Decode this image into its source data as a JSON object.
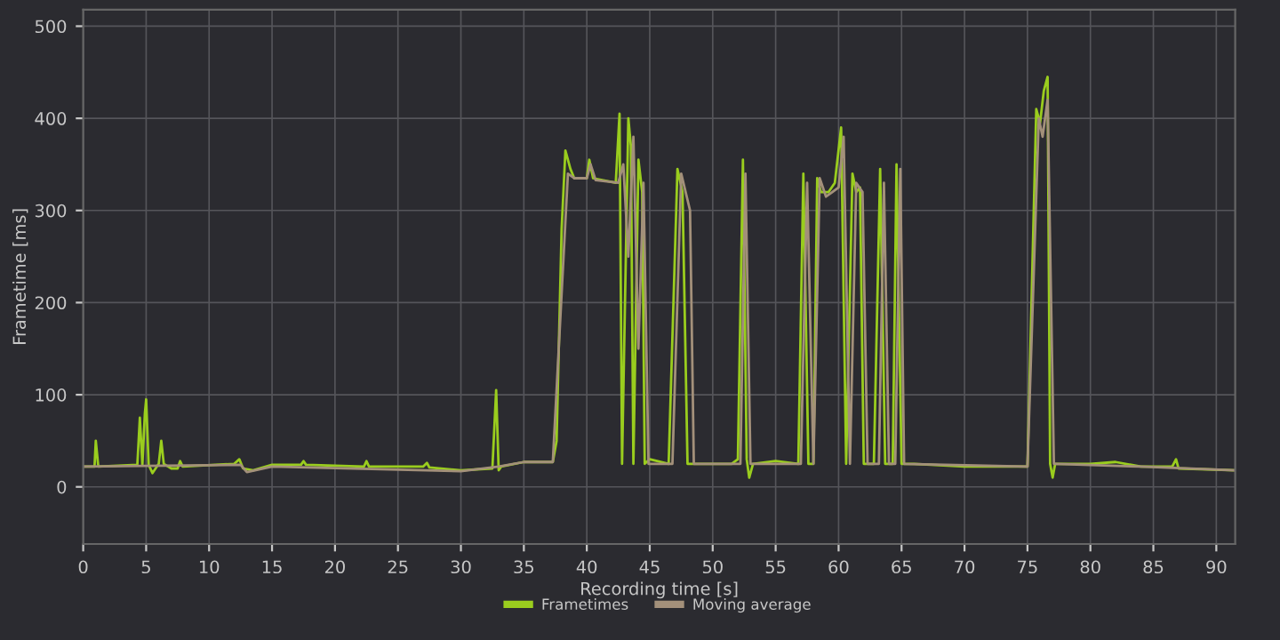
{
  "chart_data": {
    "type": "line",
    "xlabel": "Recording time [s]",
    "ylabel": "Frametime [ms]",
    "xlim": [
      0,
      91.5
    ],
    "ylim": [
      -62,
      518
    ],
    "xticks": [
      0,
      5,
      10,
      15,
      20,
      25,
      30,
      35,
      40,
      45,
      50,
      55,
      60,
      65,
      70,
      75,
      80,
      85,
      90
    ],
    "yticks": [
      0,
      100,
      200,
      300,
      400,
      500
    ],
    "grid": true,
    "legend": "bottom",
    "line_style": "solid",
    "marker": "none",
    "series": [
      {
        "name": "Frametimes",
        "color": "#9acd1e",
        "x": [
          0,
          0.9,
          1.0,
          1.2,
          4.3,
          4.5,
          4.7,
          4.9,
          5.0,
          5.2,
          5.5,
          6.0,
          6.2,
          6.4,
          7,
          7.5,
          7.7,
          7.9,
          12,
          12.4,
          12.7,
          13.5,
          15,
          17.3,
          17.5,
          17.7,
          22.3,
          22.5,
          22.7,
          27,
          27.3,
          27.5,
          30,
          32.5,
          32.8,
          33,
          33.2,
          35,
          37.3,
          37.6,
          38,
          38.3,
          38.7,
          39,
          40,
          40.2,
          40.5,
          42.3,
          42.6,
          42.8,
          43.3,
          43.5,
          43.7,
          44.1,
          44.4,
          44.6,
          45,
          46.5,
          47.2,
          47.6,
          48,
          51.5,
          52,
          52.4,
          52.7,
          52.9,
          53.2,
          55,
          56.8,
          57.2,
          57.6,
          58,
          58.3,
          58.6,
          59.2,
          59.7,
          60.2,
          60.6,
          61.1,
          61.4,
          61.7,
          62,
          62.8,
          63.3,
          63.7,
          64.3,
          64.6,
          65,
          66,
          70,
          75,
          75.7,
          76.0,
          76.3,
          76.6,
          76.8,
          77.0,
          77.2,
          80,
          82,
          84,
          86.5,
          86.8,
          87,
          91.5
        ],
        "values": [
          22,
          22,
          50,
          22,
          24,
          75,
          24,
          80,
          95,
          24,
          15,
          25,
          50,
          25,
          20,
          20,
          28,
          22,
          25,
          30,
          20,
          18,
          24,
          24,
          28,
          24,
          22,
          28,
          22,
          22,
          26,
          21,
          18,
          20,
          105,
          18,
          22,
          27,
          27,
          50,
          280,
          365,
          345,
          335,
          335,
          355,
          335,
          330,
          405,
          25,
          400,
          370,
          25,
          355,
          320,
          25,
          30,
          25,
          345,
          320,
          25,
          25,
          30,
          355,
          30,
          10,
          25,
          28,
          25,
          340,
          25,
          25,
          335,
          320,
          320,
          330,
          390,
          25,
          340,
          320,
          325,
          25,
          25,
          345,
          25,
          25,
          350,
          25,
          25,
          22,
          22,
          410,
          395,
          430,
          445,
          25,
          10,
          25,
          25,
          27,
          22,
          22,
          30,
          20,
          18
        ]
      },
      {
        "name": "Moving average",
        "color": "#a3907a",
        "x": [
          0,
          12.5,
          13,
          15,
          30,
          33,
          35,
          37.3,
          38.5,
          39,
          40,
          40.3,
          40.7,
          42.5,
          42.9,
          43.3,
          43.7,
          44.1,
          44.5,
          44.9,
          46.8,
          47.5,
          48.2,
          48.5,
          52.2,
          52.6,
          53,
          57.0,
          57.5,
          58,
          58.5,
          59,
          59.5,
          60,
          60.4,
          60.9,
          61.4,
          61.9,
          62.3,
          63.2,
          63.6,
          64,
          64.5,
          64.9,
          65.2,
          75,
          75.9,
          76.2,
          76.6,
          77.1,
          77.3,
          84,
          91.5
        ],
        "values": [
          22,
          24,
          16,
          22,
          17,
          22,
          27,
          27,
          340,
          335,
          335,
          350,
          333,
          330,
          350,
          250,
          380,
          150,
          330,
          25,
          25,
          340,
          300,
          25,
          25,
          340,
          25,
          25,
          330,
          25,
          335,
          315,
          320,
          325,
          380,
          25,
          330,
          320,
          25,
          25,
          330,
          25,
          25,
          345,
          25,
          22,
          400,
          380,
          420,
          25,
          25,
          22,
          18
        ]
      }
    ]
  }
}
